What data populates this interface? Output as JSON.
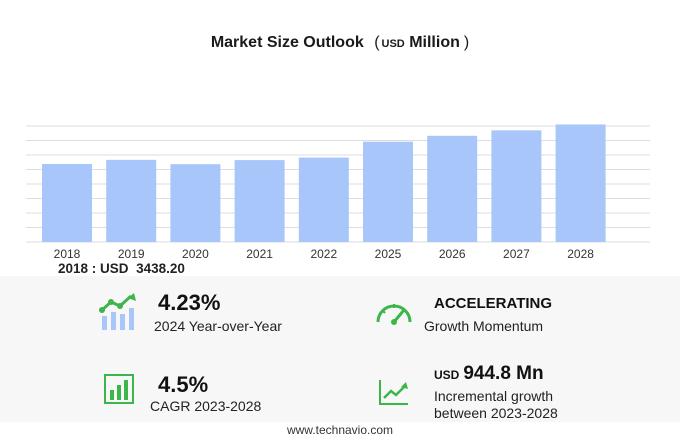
{
  "title": {
    "main": "Market Size Outlook",
    "unit": "USD",
    "unit_word": "Million"
  },
  "chart_data": {
    "type": "bar",
    "categories": [
      "2018",
      "2019",
      "2020",
      "2021",
      "2022",
      "2025",
      "2026",
      "2027",
      "2028"
    ],
    "values": [
      3438.2,
      3620,
      3430,
      3610,
      3720,
      4420,
      4680,
      4920,
      5180
    ],
    "ylim": [
      0,
      5200
    ],
    "grid": true,
    "bar_color": "#a9c6fb",
    "grid_color": "#dddddd"
  },
  "caption": {
    "year": "2018",
    "unit": "USD",
    "value": "3438.20"
  },
  "stats": {
    "yoy": {
      "value": "4.23%",
      "label": "2024 Year-over-Year"
    },
    "momentum": {
      "value": "ACCELERATING",
      "label": "Growth Momentum"
    },
    "cagr": {
      "value": "4.5%",
      "label": "CAGR 2023-2028"
    },
    "incremental": {
      "unit": "USD",
      "value": "944.8 Mn",
      "label_line1": "Incremental growth",
      "label_line2": "between 2023-2028"
    }
  },
  "accent_color": "#3cb54a",
  "footer": "www.technavio.com"
}
